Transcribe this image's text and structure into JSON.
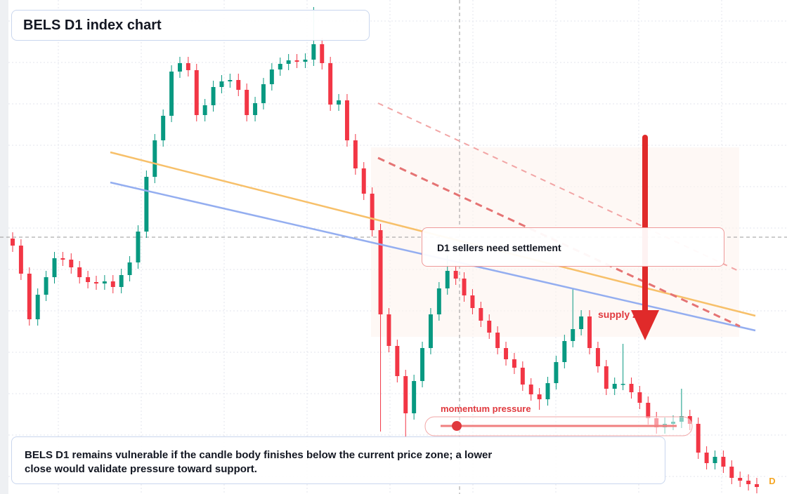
{
  "chart_data": {
    "type": "candlestick",
    "title": "BELS D1 index chart",
    "callout": "D1 sellers need settlement",
    "zone_label": "supply zone",
    "momentum_label": "momentum pressure",
    "note": "BELS D1 remains vulnerable if the candle body finishes below the current price zone; a lower close would validate pressure toward support.",
    "badge": "D",
    "up_color": "#089981",
    "down_color": "#f23645",
    "ylim": [
      0,
      704
    ],
    "ohlc": [
      [
        364,
        373,
        345,
        354
      ],
      [
        354,
        363,
        305,
        314
      ],
      [
        314,
        323,
        240,
        249
      ],
      [
        249,
        293,
        240,
        284
      ],
      [
        284,
        318,
        275,
        309
      ],
      [
        309,
        345,
        300,
        336
      ],
      [
        336,
        345,
        325,
        334
      ],
      [
        334,
        343,
        314,
        323
      ],
      [
        323,
        332,
        300,
        309
      ],
      [
        309,
        318,
        293,
        302
      ],
      [
        302,
        311,
        291,
        300
      ],
      [
        300,
        312,
        291,
        303
      ],
      [
        303,
        312,
        286,
        295
      ],
      [
        295,
        321,
        286,
        312
      ],
      [
        312,
        339,
        303,
        330
      ],
      [
        330,
        383,
        321,
        374
      ],
      [
        374,
        461,
        365,
        452
      ],
      [
        452,
        513,
        443,
        504
      ],
      [
        504,
        548,
        495,
        539
      ],
      [
        539,
        611,
        530,
        602
      ],
      [
        602,
        623,
        593,
        614
      ],
      [
        614,
        623,
        595,
        604
      ],
      [
        604,
        613,
        531,
        540
      ],
      [
        540,
        563,
        531,
        554
      ],
      [
        554,
        589,
        545,
        580
      ],
      [
        580,
        597,
        571,
        588
      ],
      [
        588,
        599,
        579,
        590
      ],
      [
        590,
        599,
        567,
        576
      ],
      [
        576,
        585,
        531,
        540
      ],
      [
        540,
        566,
        531,
        557
      ],
      [
        557,
        593,
        548,
        584
      ],
      [
        584,
        614,
        575,
        605
      ],
      [
        605,
        622,
        596,
        613
      ],
      [
        613,
        627,
        604,
        618
      ],
      [
        618,
        627,
        607,
        616
      ],
      [
        616,
        628,
        607,
        619
      ],
      [
        619,
        694,
        610,
        641
      ],
      [
        641,
        650,
        605,
        614
      ],
      [
        614,
        623,
        546,
        555
      ],
      [
        555,
        570,
        546,
        561
      ],
      [
        561,
        570,
        495,
        504
      ],
      [
        504,
        513,
        455,
        464
      ],
      [
        464,
        473,
        419,
        428
      ],
      [
        428,
        437,
        367,
        376
      ],
      [
        376,
        385,
        89,
        256
      ],
      [
        256,
        265,
        202,
        211
      ],
      [
        211,
        220,
        159,
        168
      ],
      [
        168,
        177,
        80,
        115
      ],
      [
        115,
        170,
        106,
        161
      ],
      [
        161,
        217,
        152,
        208
      ],
      [
        208,
        265,
        199,
        256
      ],
      [
        256,
        302,
        247,
        293
      ],
      [
        293,
        340,
        284,
        318
      ],
      [
        318,
        327,
        298,
        307
      ],
      [
        307,
        316,
        274,
        283
      ],
      [
        283,
        292,
        256,
        265
      ],
      [
        265,
        274,
        238,
        247
      ],
      [
        247,
        256,
        221,
        230
      ],
      [
        230,
        239,
        199,
        208
      ],
      [
        208,
        217,
        183,
        192
      ],
      [
        192,
        201,
        171,
        180
      ],
      [
        180,
        189,
        147,
        156
      ],
      [
        156,
        165,
        133,
        142
      ],
      [
        142,
        151,
        120,
        135
      ],
      [
        135,
        167,
        126,
        158
      ],
      [
        158,
        197,
        149,
        188
      ],
      [
        188,
        227,
        179,
        218
      ],
      [
        218,
        292,
        209,
        235
      ],
      [
        235,
        262,
        226,
        253
      ],
      [
        253,
        262,
        199,
        208
      ],
      [
        208,
        217,
        173,
        182
      ],
      [
        182,
        191,
        141,
        150
      ],
      [
        150,
        166,
        141,
        157
      ],
      [
        157,
        214,
        148,
        157
      ],
      [
        157,
        166,
        136,
        145
      ],
      [
        145,
        154,
        121,
        130
      ],
      [
        130,
        139,
        99,
        108
      ],
      [
        108,
        117,
        86,
        95
      ],
      [
        95,
        109,
        86,
        100
      ],
      [
        100,
        112,
        91,
        103
      ],
      [
        103,
        150,
        94,
        111
      ],
      [
        111,
        120,
        91,
        100
      ],
      [
        100,
        109,
        50,
        59
      ],
      [
        59,
        68,
        35,
        44
      ],
      [
        44,
        62,
        35,
        53
      ],
      [
        53,
        62,
        30,
        39
      ],
      [
        39,
        48,
        14,
        23
      ],
      [
        23,
        32,
        10,
        19
      ],
      [
        19,
        28,
        5,
        14
      ],
      [
        14,
        23,
        1,
        10
      ]
    ]
  }
}
